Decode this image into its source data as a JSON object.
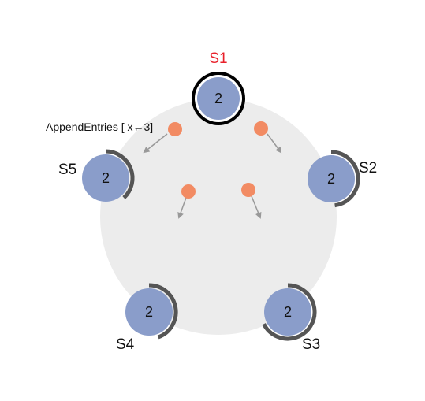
{
  "colors": {
    "cluster_background": "#ececec",
    "node_fill": "#8a9dca",
    "node_ring": "#555555",
    "leader_label": "#e8202a",
    "label": "#111111",
    "message": "#f28b63",
    "arrow": "#999999"
  },
  "leader": {
    "label": "S1",
    "term": "2"
  },
  "followers": {
    "s2": {
      "label": "S2",
      "term": "2"
    },
    "s3": {
      "label": "S3",
      "term": "2"
    },
    "s4": {
      "label": "S4",
      "term": "2"
    },
    "s5": {
      "label": "S5",
      "term": "2"
    }
  },
  "message_label": "AppendEntries [ x←3]"
}
